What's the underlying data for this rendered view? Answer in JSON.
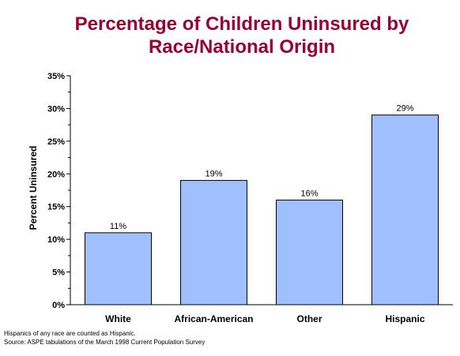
{
  "chart_data": {
    "type": "bar",
    "title": [
      "Percentage of Children Uninsured by",
      "Race/National Origin"
    ],
    "xlabel": "",
    "ylabel": "Percent Uninsured",
    "categories": [
      "White",
      "African-American",
      "Other",
      "Hispanic"
    ],
    "values": [
      11,
      19,
      16,
      29
    ],
    "value_labels": [
      "11%",
      "19%",
      "16%",
      "29%"
    ],
    "ylim": [
      0,
      35
    ],
    "yticks": [
      0,
      5,
      10,
      15,
      20,
      25,
      30,
      35
    ],
    "ytick_labels": [
      "0%",
      "5%",
      "10%",
      "15%",
      "20%",
      "25%",
      "30%",
      "35%"
    ],
    "grid": false,
    "legend": "none"
  },
  "colors": {
    "title": "#990033",
    "bar_fill": "#a0bfff",
    "bar_stroke": "#000000",
    "axis": "#000000"
  },
  "footnotes": {
    "note": "Hispanics of any race are counted as Hispanic.",
    "source": "Source: ASPE tabulations of the March 1998 Current Population Survey"
  }
}
